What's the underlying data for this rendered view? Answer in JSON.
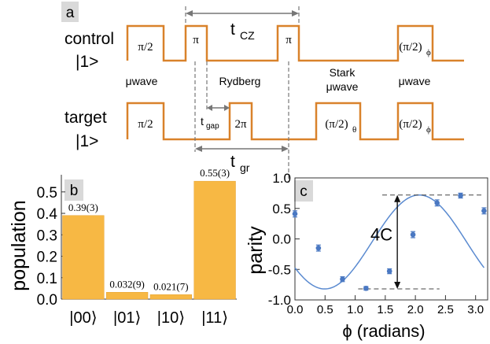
{
  "panel_a": {
    "label": "a",
    "control_label_line1": "control",
    "control_label_line2": "|1>",
    "target_label_line1": "target",
    "target_label_line2": "|1>",
    "pulses_control": [
      "π/2",
      "π",
      "π",
      "(π/2)"
    ],
    "pulses_control_sub": [
      "",
      "",
      "",
      "ϕ"
    ],
    "pulses_target": [
      "π/2",
      "2π",
      "(π/2)",
      "(π/2)"
    ],
    "pulses_target_sub": [
      "",
      "",
      "θ",
      "ϕ"
    ],
    "section_labels": {
      "mwave1": "μwave",
      "rydberg": "Rydberg",
      "stark_line1": "Stark",
      "stark_line2": "μwave",
      "mwave2": "μwave"
    },
    "t_cz": "t",
    "t_cz_sub": "CZ",
    "t_gap": "t",
    "t_gap_sub": "gap",
    "t_gr": "t",
    "t_gr_sub": "gr",
    "pulse_color": "#d9822b"
  },
  "chart_data": [
    {
      "panel": "b",
      "type": "bar",
      "ylabel": "population",
      "categories": [
        "|00⟩",
        "|01⟩",
        "|10⟩",
        "|11⟩"
      ],
      "values": [
        0.39,
        0.032,
        0.021,
        0.55
      ],
      "data_labels": [
        "0.39(3)",
        "0.032(9)",
        "0.021(7)",
        "0.55(3)"
      ],
      "ylim": [
        0,
        0.58
      ],
      "yticks": [
        "0.0",
        "0.1",
        "0.2",
        "0.3",
        "0.4",
        "0.5"
      ],
      "bar_color": "#f7b844"
    },
    {
      "panel": "c",
      "type": "scatter",
      "xlabel": "ϕ (radians)",
      "ylabel": "parity",
      "xlim": [
        0,
        3.2
      ],
      "ylim": [
        -1.0,
        1.0
      ],
      "xticks": [
        "0.0",
        "0.5",
        "1.0",
        "1.5",
        "2.0",
        "2.5",
        "3.0"
      ],
      "yticks": [
        "-1.0",
        "-0.5",
        "0.0",
        "0.5",
        "1.0"
      ],
      "points": [
        {
          "x": 0.0,
          "y": 0.41,
          "err": 0.05
        },
        {
          "x": 0.39,
          "y": -0.15,
          "err": 0.05
        },
        {
          "x": 0.79,
          "y": -0.66,
          "err": 0.04
        },
        {
          "x": 1.18,
          "y": -0.81,
          "err": 0.03
        },
        {
          "x": 1.57,
          "y": -0.53,
          "err": 0.04
        },
        {
          "x": 1.96,
          "y": 0.07,
          "err": 0.05
        },
        {
          "x": 2.36,
          "y": 0.59,
          "err": 0.05
        },
        {
          "x": 2.75,
          "y": 0.71,
          "err": 0.04
        },
        {
          "x": 3.14,
          "y": 0.46,
          "err": 0.05
        }
      ],
      "fit": {
        "offset": -0.05,
        "amplitude": 0.77,
        "phase": 4.13
      },
      "annotation": "4C",
      "point_color": "#4a78c2",
      "fit_color": "#5a8ad0"
    }
  ]
}
